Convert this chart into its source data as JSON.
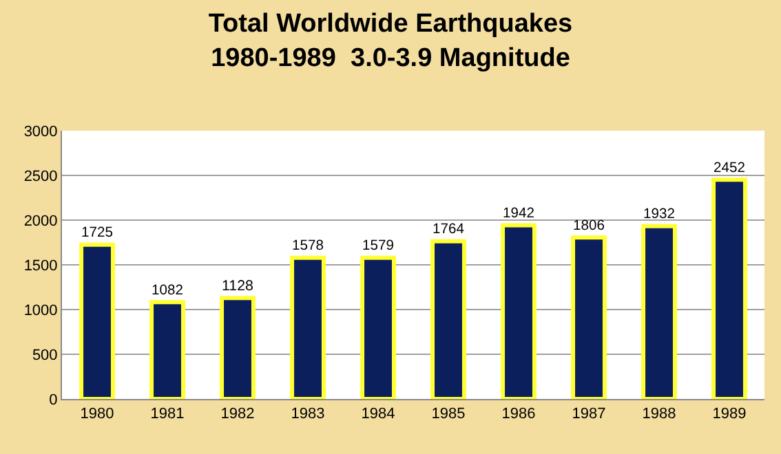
{
  "chart_data": {
    "type": "bar",
    "title": "Total Worldwide Earthquakes\n1980-1989  3.0-3.9 Magnitude",
    "categories": [
      "1980",
      "1981",
      "1982",
      "1983",
      "1984",
      "1985",
      "1986",
      "1987",
      "1988",
      "1989"
    ],
    "values": [
      1725,
      1082,
      1128,
      1578,
      1579,
      1764,
      1942,
      1806,
      1932,
      2452
    ],
    "color": "#0a1f5c",
    "ylim": [
      0,
      3000
    ],
    "yticks": [
      0,
      500,
      1000,
      1500,
      2000,
      2500,
      3000
    ],
    "grid": "y",
    "data_labels": true
  }
}
